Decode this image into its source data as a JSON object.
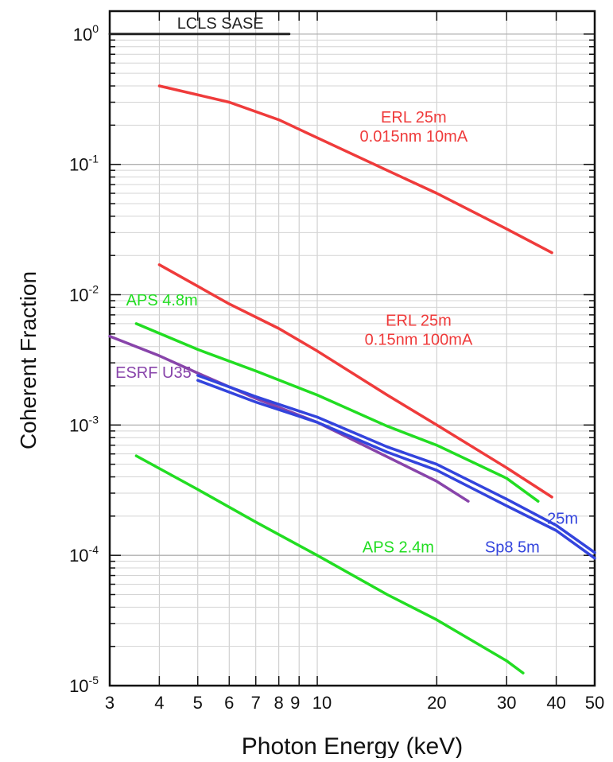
{
  "chart_data": {
    "type": "line",
    "title": "",
    "xlabel": "Photon Energy (keV)",
    "ylabel": "Coherent Fraction",
    "xscale": "log",
    "yscale": "log",
    "xlim": [
      3,
      50
    ],
    "ylim": [
      1e-05,
      1.5
    ],
    "grid": true,
    "x_ticks": [
      {
        "value": 3,
        "label": "3"
      },
      {
        "value": 4,
        "label": "4"
      },
      {
        "value": 5,
        "label": "5"
      },
      {
        "value": 6,
        "label": "6"
      },
      {
        "value": 7,
        "label": "7"
      },
      {
        "value": 8,
        "label": "8"
      },
      {
        "value": 9,
        "label": "9"
      },
      {
        "value": 10,
        "label": "10"
      },
      {
        "value": 20,
        "label": "20"
      },
      {
        "value": 30,
        "label": "30"
      },
      {
        "value": 40,
        "label": "40"
      },
      {
        "value": 50,
        "label": "50"
      }
    ],
    "y_ticks": [
      {
        "value": 1,
        "base": "10",
        "exp": "0"
      },
      {
        "value": 0.1,
        "base": "10",
        "exp": "-1"
      },
      {
        "value": 0.01,
        "base": "10",
        "exp": "-2"
      },
      {
        "value": 0.001,
        "base": "10",
        "exp": "-3"
      },
      {
        "value": 0.0001,
        "base": "10",
        "exp": "-4"
      },
      {
        "value": 1e-05,
        "base": "10",
        "exp": "-5"
      }
    ],
    "series": [
      {
        "name": "LCLS SASE",
        "color": "#222222",
        "x": [
          3,
          8.5
        ],
        "y": [
          1.0,
          1.0
        ]
      },
      {
        "name": "ERL 25m 0.015nm 10mA",
        "color": "#ef3b3b",
        "x": [
          4,
          6,
          8,
          10,
          15,
          20,
          30,
          39
        ],
        "y": [
          0.4,
          0.3,
          0.22,
          0.16,
          0.09,
          0.06,
          0.032,
          0.021
        ]
      },
      {
        "name": "ERL 25m 0.15nm 100mA",
        "color": "#ef3b3b",
        "x": [
          4,
          6,
          8,
          10,
          15,
          20,
          30,
          39
        ],
        "y": [
          0.017,
          0.0085,
          0.0055,
          0.0037,
          0.0017,
          0.001,
          0.00047,
          0.00028
        ]
      },
      {
        "name": "APS 4.8m",
        "color": "#22dd22",
        "x": [
          3.5,
          5,
          7,
          10,
          15,
          20,
          30,
          36
        ],
        "y": [
          0.006,
          0.0038,
          0.0026,
          0.0017,
          0.00098,
          0.0007,
          0.00039,
          0.00026
        ]
      },
      {
        "name": "ESRF U35",
        "color": "#8844aa",
        "x": [
          3,
          4,
          5,
          7,
          10,
          15,
          20,
          24
        ],
        "y": [
          0.0048,
          0.0034,
          0.0025,
          0.0016,
          0.00105,
          0.00057,
          0.00037,
          0.00026
        ]
      },
      {
        "name": "25m",
        "color": "#3344dd",
        "x": [
          5,
          7,
          10,
          15,
          20,
          30,
          40,
          50
        ],
        "y": [
          0.0024,
          0.00165,
          0.00115,
          0.00068,
          0.0005,
          0.00027,
          0.00017,
          0.000105
        ]
      },
      {
        "name": "Sp8 5m",
        "color": "#3344dd",
        "x": [
          5,
          7,
          10,
          15,
          20,
          30,
          40,
          50
        ],
        "y": [
          0.0022,
          0.0015,
          0.00105,
          0.00062,
          0.00045,
          0.00024,
          0.000155,
          9.5e-05
        ]
      },
      {
        "name": "APS 2.4m",
        "color": "#22dd22",
        "x": [
          3.5,
          5,
          7,
          10,
          15,
          20,
          30,
          33
        ],
        "y": [
          0.00058,
          0.00032,
          0.00018,
          0.0001,
          5e-05,
          3.2e-05,
          1.55e-05,
          1.25e-05
        ]
      }
    ],
    "annotations": [
      {
        "id": "lcls",
        "lines": [
          "LCLS SASE"
        ],
        "color": "#222222",
        "x": 5.7,
        "y": 1.1,
        "anchor": "middle"
      },
      {
        "id": "erl1",
        "lines": [
          "ERL 25m",
          "0.015nm 10mA"
        ],
        "color": "#ef3b3b",
        "x": 17.5,
        "y": 0.21,
        "anchor": "middle"
      },
      {
        "id": "erl2",
        "lines": [
          "ERL 25m",
          "0.15nm 100mA"
        ],
        "color": "#ef3b3b",
        "x": 18,
        "y": 0.0058,
        "anchor": "middle"
      },
      {
        "id": "aps48",
        "lines": [
          "APS 4.8m"
        ],
        "color": "#22dd22",
        "x": 3.3,
        "y": 0.0083,
        "anchor": "start"
      },
      {
        "id": "esrf",
        "lines": [
          "ESRF U35"
        ],
        "color": "#8844aa",
        "x": 3.1,
        "y": 0.0023,
        "anchor": "start"
      },
      {
        "id": "l25m",
        "lines": [
          "25m"
        ],
        "color": "#3344dd",
        "x": 41.5,
        "y": 0.000175,
        "anchor": "middle"
      },
      {
        "id": "sp8",
        "lines": [
          "Sp8 5m"
        ],
        "color": "#3344dd",
        "x": 31,
        "y": 0.000105,
        "anchor": "middle"
      },
      {
        "id": "aps24",
        "lines": [
          "APS 2.4m"
        ],
        "color": "#22dd22",
        "x": 16,
        "y": 0.000105,
        "anchor": "middle"
      }
    ]
  }
}
